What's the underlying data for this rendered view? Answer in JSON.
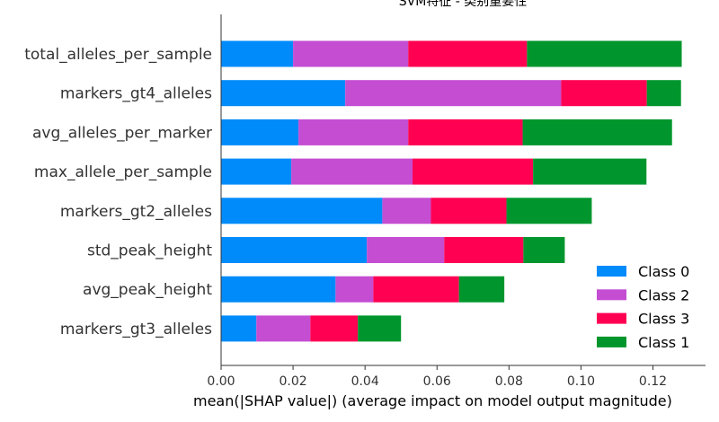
{
  "chart_data": {
    "type": "bar",
    "stacked": true,
    "orientation": "horizontal",
    "title": "SVM特征 - 类别重要性",
    "xlabel": "mean(|SHAP value|) (average impact on model output magnitude)",
    "ylabel": "",
    "xlim": [
      0,
      0.135
    ],
    "xticks": [
      "0.00",
      "0.02",
      "0.04",
      "0.06",
      "0.08",
      "0.10",
      "0.12"
    ],
    "xtick_values": [
      0,
      0.02,
      0.04,
      0.06,
      0.08,
      0.1,
      0.12
    ],
    "grid": false,
    "legend_position": "lower-right",
    "categories": [
      "total_alleles_per_sample",
      "markers_gt4_alleles",
      "avg_alleles_per_marker",
      "max_allele_per_sample",
      "markers_gt2_alleles",
      "std_peak_height",
      "avg_peak_height",
      "markers_gt3_alleles"
    ],
    "series": [
      {
        "name": "Class 0",
        "color": "#008bfb",
        "values": [
          0.02,
          0.0345,
          0.0215,
          0.0195,
          0.0448,
          0.0405,
          0.0318,
          0.0098
        ]
      },
      {
        "name": "Class 2",
        "color": "#c44dd2",
        "values": [
          0.032,
          0.06,
          0.0305,
          0.0337,
          0.0135,
          0.0215,
          0.0105,
          0.015
        ]
      },
      {
        "name": "Class 3",
        "color": "#ff0052",
        "values": [
          0.033,
          0.0238,
          0.0318,
          0.0335,
          0.021,
          0.022,
          0.0238,
          0.0132
        ]
      },
      {
        "name": "Class 1",
        "color": "#00962d",
        "values": [
          0.043,
          0.0095,
          0.0415,
          0.0315,
          0.0237,
          0.0115,
          0.0126,
          0.012
        ]
      }
    ],
    "legend_order": [
      "Class 0",
      "Class 2",
      "Class 3",
      "Class 1"
    ]
  }
}
